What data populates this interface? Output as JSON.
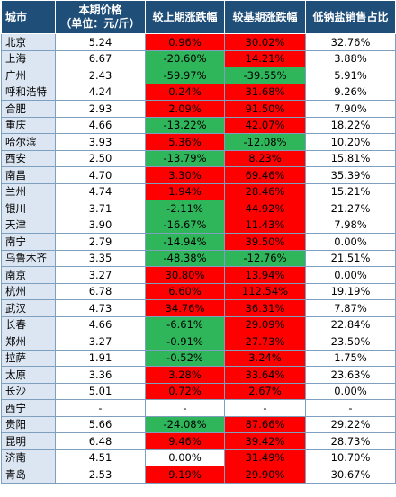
{
  "headers": {
    "city": "城市",
    "price_line1": "本期价格",
    "price_line2": "（单位：元/斤）",
    "mom": "较上期涨跌幅",
    "yoy": "较基期涨跌幅",
    "share": "低钠盐销售占比"
  },
  "colors": {
    "up": "#ff0000",
    "down": "#2fb55a",
    "header": "#1f4e79",
    "city_bg": "#dbe6f2"
  },
  "rows": [
    {
      "city": "北京",
      "price": "5.24",
      "mom": "0.96%",
      "mom_c": "red",
      "yoy": "30.02%",
      "yoy_c": "red",
      "share": "32.76%"
    },
    {
      "city": "上海",
      "price": "6.67",
      "mom": "-20.60%",
      "mom_c": "green",
      "yoy": "14.21%",
      "yoy_c": "red",
      "share": "3.88%"
    },
    {
      "city": "广州",
      "price": "2.43",
      "mom": "-59.97%",
      "mom_c": "green",
      "yoy": "-39.55%",
      "yoy_c": "green",
      "share": "5.91%"
    },
    {
      "city": "呼和浩特",
      "price": "4.24",
      "mom": "0.24%",
      "mom_c": "red",
      "yoy": "31.68%",
      "yoy_c": "red",
      "share": "9.26%"
    },
    {
      "city": "合肥",
      "price": "2.93",
      "mom": "2.09%",
      "mom_c": "red",
      "yoy": "91.50%",
      "yoy_c": "red",
      "share": "7.90%"
    },
    {
      "city": "重庆",
      "price": "4.66",
      "mom": "-13.22%",
      "mom_c": "green",
      "yoy": "42.07%",
      "yoy_c": "red",
      "share": "18.22%"
    },
    {
      "city": "哈尔滨",
      "price": "3.93",
      "mom": "5.36%",
      "mom_c": "red",
      "yoy": "-12.08%",
      "yoy_c": "green",
      "share": "10.20%"
    },
    {
      "city": "西安",
      "price": "2.50",
      "mom": "-13.79%",
      "mom_c": "green",
      "yoy": "8.23%",
      "yoy_c": "red",
      "share": "15.81%"
    },
    {
      "city": "南昌",
      "price": "4.70",
      "mom": "3.30%",
      "mom_c": "red",
      "yoy": "69.46%",
      "yoy_c": "red",
      "share": "35.39%"
    },
    {
      "city": "兰州",
      "price": "4.74",
      "mom": "1.94%",
      "mom_c": "red",
      "yoy": "28.46%",
      "yoy_c": "red",
      "share": "15.21%"
    },
    {
      "city": "银川",
      "price": "3.71",
      "mom": "-2.11%",
      "mom_c": "green",
      "yoy": "44.92%",
      "yoy_c": "red",
      "share": "21.27%"
    },
    {
      "city": "天津",
      "price": "3.90",
      "mom": "-16.67%",
      "mom_c": "green",
      "yoy": "11.43%",
      "yoy_c": "red",
      "share": "7.98%"
    },
    {
      "city": "南宁",
      "price": "2.79",
      "mom": "-14.94%",
      "mom_c": "green",
      "yoy": "39.50%",
      "yoy_c": "red",
      "share": "0.00%"
    },
    {
      "city": "乌鲁木齐",
      "price": "3.35",
      "mom": "-48.38%",
      "mom_c": "green",
      "yoy": "-12.76%",
      "yoy_c": "green",
      "share": "21.51%"
    },
    {
      "city": "南京",
      "price": "3.27",
      "mom": "30.80%",
      "mom_c": "red",
      "yoy": "13.94%",
      "yoy_c": "red",
      "share": "0.00%"
    },
    {
      "city": "杭州",
      "price": "6.78",
      "mom": "6.60%",
      "mom_c": "red",
      "yoy": "112.54%",
      "yoy_c": "red",
      "share": "19.19%"
    },
    {
      "city": "武汉",
      "price": "4.73",
      "mom": "34.76%",
      "mom_c": "red",
      "yoy": "36.31%",
      "yoy_c": "red",
      "share": "7.87%"
    },
    {
      "city": "长春",
      "price": "4.66",
      "mom": "-6.61%",
      "mom_c": "green",
      "yoy": "29.09%",
      "yoy_c": "red",
      "share": "22.84%"
    },
    {
      "city": "郑州",
      "price": "3.27",
      "mom": "-0.91%",
      "mom_c": "green",
      "yoy": "27.73%",
      "yoy_c": "red",
      "share": "23.50%"
    },
    {
      "city": "拉萨",
      "price": "1.91",
      "mom": "-0.52%",
      "mom_c": "green",
      "yoy": "3.24%",
      "yoy_c": "red",
      "share": "1.75%"
    },
    {
      "city": "太原",
      "price": "3.36",
      "mom": "3.28%",
      "mom_c": "red",
      "yoy": "33.64%",
      "yoy_c": "red",
      "share": "23.63%"
    },
    {
      "city": "长沙",
      "price": "5.01",
      "mom": "0.72%",
      "mom_c": "red",
      "yoy": "2.67%",
      "yoy_c": "red",
      "share": "0.00%"
    },
    {
      "city": "西宁",
      "price": "-",
      "mom": "-",
      "mom_c": "neutral",
      "yoy": "-",
      "yoy_c": "neutral",
      "share": "-"
    },
    {
      "city": "贵阳",
      "price": "5.66",
      "mom": "-24.08%",
      "mom_c": "green",
      "yoy": "87.66%",
      "yoy_c": "red",
      "share": "29.22%"
    },
    {
      "city": "昆明",
      "price": "6.48",
      "mom": "9.46%",
      "mom_c": "red",
      "yoy": "39.42%",
      "yoy_c": "red",
      "share": "28.73%"
    },
    {
      "city": "济南",
      "price": "4.51",
      "mom": "0.00%",
      "mom_c": "neutral",
      "yoy": "31.49%",
      "yoy_c": "red",
      "share": "10.70%"
    },
    {
      "city": "青岛",
      "price": "2.53",
      "mom": "9.19%",
      "mom_c": "red",
      "yoy": "29.90%",
      "yoy_c": "red",
      "share": "30.67%"
    }
  ]
}
